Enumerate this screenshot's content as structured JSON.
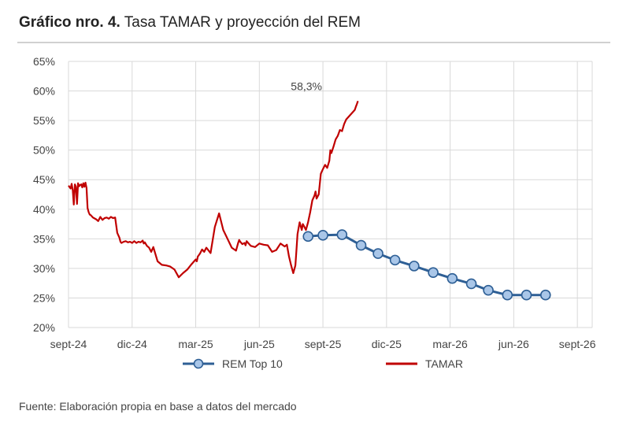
{
  "title_bold": "Gráfico nro. 4.",
  "title_rest": " Tasa TAMAR y proyección del REM",
  "source": "Fuente: Elaboración propia en base a datos del mercado",
  "chart_data": {
    "type": "line",
    "y_ticks": [
      "20%",
      "25%",
      "30%",
      "35%",
      "40%",
      "45%",
      "50%",
      "55%",
      "60%",
      "65%"
    ],
    "x_ticks": [
      "sept-24",
      "dic-24",
      "mar-25",
      "jun-25",
      "sept-25",
      "dic-25",
      "mar-26",
      "jun-26",
      "sept-26"
    ],
    "ylim": [
      20,
      65
    ],
    "xlim": [
      0,
      24.7
    ],
    "grid": true,
    "legend_position": "bottom",
    "colors": {
      "rem": "#2e5f95",
      "rem_marker": "#a9c6e8",
      "tamar": "#c00000",
      "grid": "#d9d9d9"
    },
    "annotation": {
      "text": "58,3%",
      "x": 11.0,
      "y": 58.3
    },
    "series": [
      {
        "name": "REM Top 10",
        "style": "line-markers",
        "x": [
          11.3,
          12.0,
          12.9,
          13.8,
          14.6,
          15.4,
          16.3,
          17.2,
          18.1,
          19.0,
          19.8,
          20.7,
          21.6,
          22.5
        ],
        "values": [
          35.4,
          35.6,
          35.7,
          33.9,
          32.5,
          31.4,
          30.4,
          29.3,
          28.3,
          27.4,
          26.3,
          25.5,
          25.5,
          25.5
        ]
      },
      {
        "name": "TAMAR",
        "style": "line",
        "x": [
          0.0,
          0.1,
          0.15,
          0.2,
          0.25,
          0.3,
          0.35,
          0.4,
          0.45,
          0.5,
          0.55,
          0.6,
          0.65,
          0.7,
          0.75,
          0.8,
          0.85,
          0.9,
          0.95,
          1.0,
          1.05,
          1.1,
          1.15,
          1.2,
          1.3,
          1.4,
          1.5,
          1.6,
          1.7,
          1.8,
          1.9,
          2.0,
          2.1,
          2.2,
          2.3,
          2.4,
          2.45,
          2.5,
          2.6,
          2.7,
          2.8,
          2.9,
          3.0,
          3.1,
          3.2,
          3.3,
          3.4,
          3.5,
          3.55,
          3.6,
          3.7,
          3.8,
          3.9,
          4.0,
          4.2,
          4.4,
          4.6,
          4.8,
          5.0,
          5.2,
          5.4,
          5.6,
          5.8,
          6.0,
          6.05,
          6.1,
          6.2,
          6.3,
          6.4,
          6.5,
          6.7,
          6.9,
          7.1,
          7.3,
          7.5,
          7.7,
          7.9,
          8.0,
          8.05,
          8.1,
          8.2,
          8.3,
          8.35,
          8.4,
          8.5,
          8.6,
          8.8,
          9.0,
          9.2,
          9.4,
          9.6,
          9.8,
          10.0,
          10.2,
          10.3,
          10.4,
          10.5,
          10.6,
          10.7,
          10.75,
          10.8,
          10.9,
          11.0,
          11.05,
          11.1
        ],
        "values": [
          44.0,
          43.5,
          44.3,
          43.2,
          40.8,
          44.2,
          43.8,
          40.9,
          44.4,
          43.9,
          44.1,
          44.2,
          43.7,
          44.4,
          43.8,
          44.5,
          43.6,
          40.2,
          39.5,
          39.1,
          39.0,
          38.8,
          38.6,
          38.5,
          38.3,
          38.0,
          38.7,
          38.2,
          38.5,
          38.6,
          38.4,
          38.7,
          38.5,
          38.6,
          36.0,
          35.2,
          34.5,
          34.3,
          34.5,
          34.6,
          34.4,
          34.5,
          34.3,
          34.6,
          34.3,
          34.5,
          34.4,
          34.7,
          34.2,
          34.4,
          33.8,
          33.5,
          32.8,
          33.6,
          31.2,
          30.6,
          30.5,
          30.3,
          29.8,
          28.5,
          29.2,
          29.8,
          30.7,
          31.5,
          31.2,
          32.0,
          32.5,
          33.2,
          32.8,
          33.5,
          32.6,
          37.0,
          39.3,
          36.5,
          35.0,
          33.5,
          33.0,
          34.3,
          34.8,
          34.5,
          34.1,
          34.3,
          33.9,
          34.6,
          34.2,
          33.8,
          33.6,
          34.2,
          34.0,
          33.9,
          32.8,
          33.1,
          34.2,
          33.7,
          34.0,
          32.0,
          30.5,
          29.2,
          30.5,
          33.0,
          35.8,
          37.8,
          36.5,
          37.5,
          37.2
        ]
      },
      {
        "name": "",
        "style": "line",
        "x": [
          11.1,
          11.2,
          11.3,
          11.4,
          11.5,
          11.6,
          11.65,
          11.7,
          11.8,
          11.9,
          12.0,
          12.1,
          12.2,
          12.3,
          12.35,
          12.4,
          12.5,
          12.6,
          12.7,
          12.8,
          12.9,
          13.0,
          13.1,
          13.2,
          13.3,
          13.4,
          13.5,
          13.55,
          13.6,
          13.65
        ],
        "values": [
          37.2,
          36.5,
          37.8,
          39.5,
          41.5,
          42.3,
          43.0,
          41.8,
          42.5,
          46.0,
          46.8,
          47.5,
          47.0,
          48.2,
          50.0,
          49.5,
          50.6,
          51.8,
          52.4,
          53.4,
          53.2,
          54.4,
          55.2,
          55.6,
          56.0,
          56.4,
          56.8,
          57.3,
          57.8,
          58.3
        ]
      }
    ]
  }
}
